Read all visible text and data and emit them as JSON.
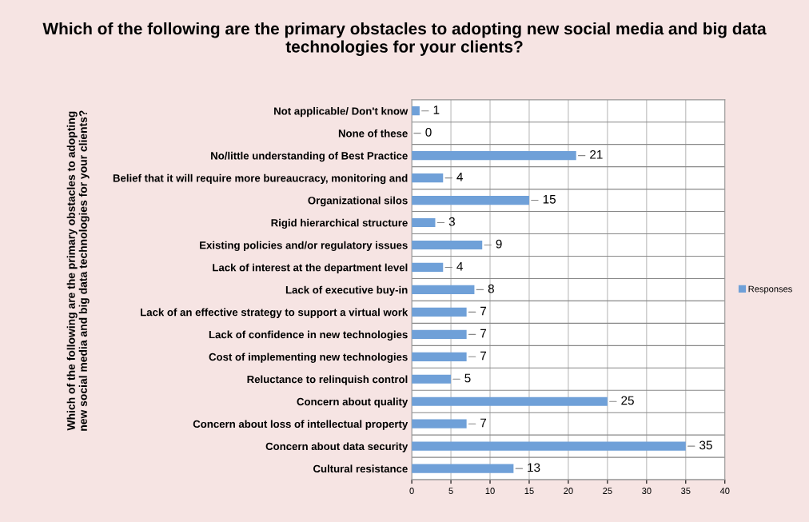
{
  "chart_data": {
    "type": "bar",
    "orientation": "horizontal",
    "title": "Which of the following are the primary obstacles to adopting new social media and big data technologies for your clients?",
    "ylabel": "Which of the following are the primary obstacles to adopting new social media and big data technologies for your clients?",
    "categories": [
      "Not applicable/ Don't know",
      "None of these",
      "No/little understanding of Best Practice",
      "Belief that it will require more bureaucracy, monitoring and",
      "Organizational silos",
      "Rigid hierarchical structure",
      "Existing policies and/or regulatory issues",
      "Lack of interest at the department level",
      "Lack of executive buy-in",
      "Lack of an effective strategy to support a virtual work",
      "Lack of confidence in new technologies",
      "Cost of implementing new technologies",
      "Reluctance to relinquish control",
      "Concern about quality",
      "Concern about loss of intellectual property",
      "Concern about data security",
      "Cultural resistance"
    ],
    "series": [
      {
        "name": "Responses",
        "color": "#6fa0d8",
        "values": [
          1,
          0,
          21,
          4,
          15,
          3,
          9,
          4,
          8,
          7,
          7,
          7,
          5,
          25,
          7,
          35,
          13
        ]
      }
    ],
    "xlim": [
      0,
      40
    ],
    "xticks": [
      0,
      5,
      10,
      15,
      20,
      25,
      30,
      35,
      40
    ],
    "grid": true,
    "legend": "right",
    "data_labels": true
  }
}
